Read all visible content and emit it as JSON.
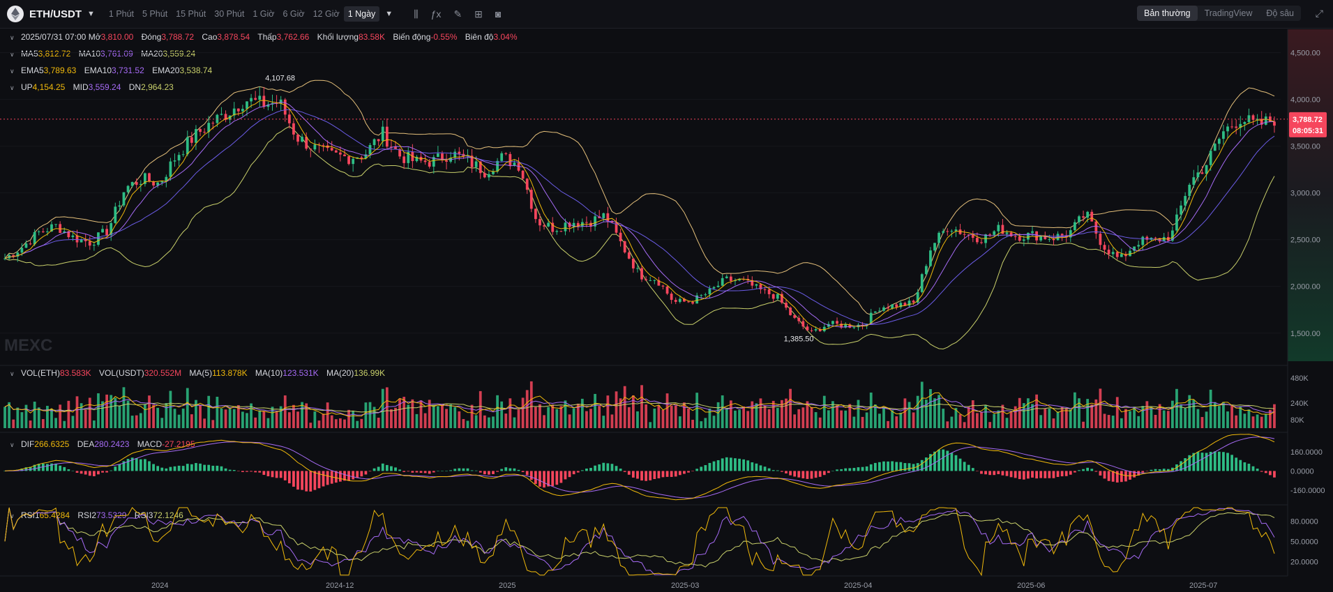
{
  "toolbar": {
    "symbol": "ETH/USDT",
    "timeframes": [
      "1 Phút",
      "5 Phút",
      "15 Phút",
      "30 Phút",
      "1 Giờ",
      "6 Giờ",
      "12 Giờ",
      "1 Ngày"
    ],
    "active_timeframe": "1 Ngày",
    "modes": [
      "Bản thường",
      "TradingView",
      "Độ sâu"
    ],
    "active_mode": "Bản thường"
  },
  "ohlc": {
    "date": "2025/07/31 07:00",
    "open_label": "Mở",
    "open": "3,810.00",
    "close_label": "Đóng",
    "close": "3,788.72",
    "high_label": "Cao",
    "high": "3,878.54",
    "low_label": "Thấp",
    "low": "3,762.66",
    "volume_label": "Khối lượng",
    "volume": "83.58K",
    "change_label": "Biến động",
    "change": "-0.55%",
    "amplitude_label": "Biên độ",
    "amplitude": "3.04%"
  },
  "ma": {
    "ma5_label": "MA5",
    "ma5": "3,812.72",
    "ma10_label": "MA10",
    "ma10": "3,761.09",
    "ma20_label": "MA20",
    "ma20": "3,559.24"
  },
  "ema": {
    "ema5_label": "EMA5",
    "ema5": "3,789.63",
    "ema10_label": "EMA10",
    "ema10": "3,731.52",
    "ema20_label": "EMA20",
    "ema20": "3,538.74"
  },
  "boll": {
    "up_label": "UP",
    "up": "4,154.25",
    "mid_label": "MID",
    "mid": "3,559.24",
    "dn_label": "DN",
    "dn": "2,964.23"
  },
  "vol": {
    "eth_label": "VOL(ETH)",
    "eth": "83.583K",
    "usdt_label": "VOL(USDT)",
    "usdt": "320.552M",
    "ma5_label": "MA(5)",
    "ma5": "113.878K",
    "ma10_label": "MA(10)",
    "ma10": "123.531K",
    "ma20_label": "MA(20)",
    "ma20": "136.99K"
  },
  "macd": {
    "dif_label": "DIF",
    "dif": "266.6325",
    "dea_label": "DEA",
    "dea": "280.2423",
    "macd_label": "MACD",
    "macd": "-27.2195"
  },
  "rsi": {
    "rsi1_label": "RSI1",
    "rsi1": "65.4284",
    "rsi2_label": "RSI2",
    "rsi2": "73.5329",
    "rsi3_label": "RSI3",
    "rsi3": "72.1246"
  },
  "watermark": "MEXC",
  "colors": {
    "up": "#2ebd85",
    "down": "#f6465d",
    "ma5": "#f0b90b",
    "ma10": "#a66bf5",
    "ma20": "#6b5ce7",
    "boll": "#e5c07b",
    "bg": "#0d0e12"
  },
  "chart_data": {
    "type": "candlestick",
    "price_axis": [
      "4,500.00",
      "4,000.00",
      "3,500.00",
      "3,000.00",
      "2,500.00",
      "2,000.00",
      "1,500.00"
    ],
    "price_ticks": [
      4500,
      4000,
      3500,
      3000,
      2500,
      2000,
      1500
    ],
    "vol_axis": [
      "480K",
      "240K",
      "80K"
    ],
    "vol_ticks": [
      480,
      240,
      80
    ],
    "macd_axis": [
      "160.0000",
      "0.0000",
      "-160.0000"
    ],
    "macd_ticks": [
      160,
      0,
      -160
    ],
    "rsi_axis": [
      "80.0000",
      "50.0000",
      "20.0000"
    ],
    "rsi_ticks": [
      80,
      50,
      20
    ],
    "x_labels": [
      "2024",
      "2024-12",
      "2025",
      "2025-03",
      "2025-04",
      "2025-06",
      "2025-07"
    ],
    "last_price": "3,788.72",
    "countdown": "08:05:31",
    "max_label": "4,107.68",
    "min_label": "1,385.50",
    "series_close": [
      2300,
      2420,
      2580,
      2650,
      2520,
      2470,
      2600,
      3050,
      3150,
      3100,
      3400,
      3600,
      3750,
      3860,
      4000,
      3950,
      3970,
      3600,
      3480,
      3400,
      3380,
      3420,
      3640,
      3400,
      3330,
      3340,
      3430,
      3340,
      3230,
      3380,
      3300,
      2700,
      2620,
      2690,
      2690,
      2760,
      2430,
      2120,
      2080,
      1830,
      1840,
      1930,
      2070,
      2060,
      1960,
      1890,
      1650,
      1500,
      1600,
      1580,
      1590,
      1780,
      1800,
      1820,
      2430,
      2650,
      2560,
      2510,
      2620,
      2540,
      2550,
      2520,
      2560,
      2780,
      2440,
      2280,
      2480,
      2490,
      2540,
      3100,
      3300,
      3650,
      3800,
      3720,
      3790
    ]
  }
}
